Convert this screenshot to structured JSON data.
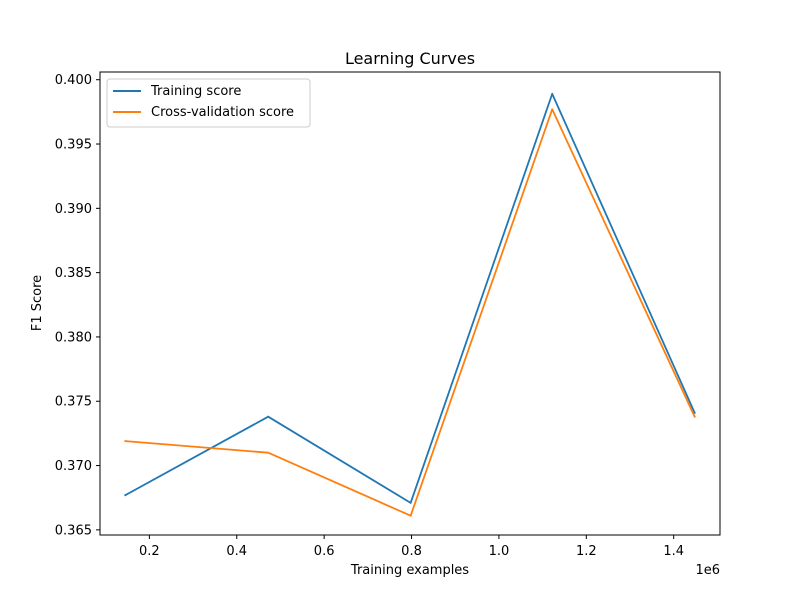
{
  "chart_data": {
    "type": "line",
    "title": "Learning Curves",
    "xlabel": "Training examples",
    "ylabel": "F1 Score",
    "x_offset_label": "1e6",
    "x": [
      145000,
      472000,
      798000,
      1122000,
      1448000
    ],
    "xlim": [
      0.087,
      1.506
    ],
    "ylim": [
      0.3646,
      0.4006
    ],
    "xticks": [
      0.2,
      0.4,
      0.6,
      0.8,
      1.0,
      1.2,
      1.4
    ],
    "xtick_labels": [
      "0.2",
      "0.4",
      "0.6",
      "0.8",
      "1.0",
      "1.2",
      "1.4"
    ],
    "yticks": [
      0.365,
      0.37,
      0.375,
      0.38,
      0.385,
      0.39,
      0.395,
      0.4
    ],
    "ytick_labels": [
      "0.365",
      "0.370",
      "0.375",
      "0.380",
      "0.385",
      "0.390",
      "0.395",
      "0.400"
    ],
    "grid": false,
    "legend_position": "top-left",
    "series": [
      {
        "name": "Training score",
        "color": "#1f77b4",
        "values": [
          0.3677,
          0.3738,
          0.3671,
          0.3989,
          0.3741
        ]
      },
      {
        "name": "Cross-validation score",
        "color": "#ff7f0e",
        "values": [
          0.3719,
          0.371,
          0.3661,
          0.3977,
          0.3738
        ]
      }
    ]
  }
}
